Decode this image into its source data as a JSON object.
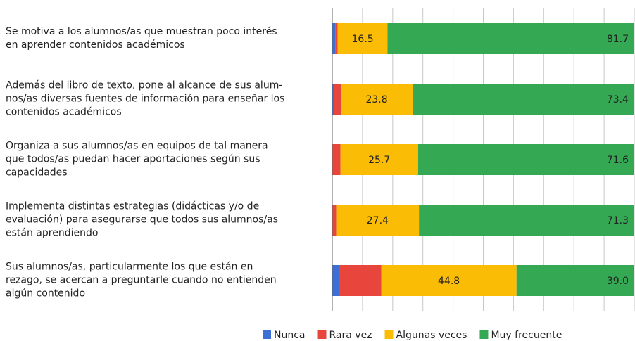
{
  "chart_data": {
    "type": "stacked_barh",
    "categories": [
      "Se motiva a los alumnos/as que muestran poco interés\nen aprender contenidos académicos",
      "Además del libro de texto, pone al alcance de sus alum-\nnos/as diversas fuentes de información para enseñar los\ncontenidos académicos",
      "Organiza a sus alumnos/as en equipos de tal manera\nque todos/as puedan hacer aportaciones según sus\ncapacidades",
      "Implementa distintas estrategias (didácticas y/o de\nevaluación) para asegurarse que todos sus alumnos/as\nestán aprendiendo",
      "Sus alumnos/as, particularmente los que están en\nrezago, se acercan a preguntarle cuando no entienden\nalgún contenido"
    ],
    "series": [
      {
        "name": "Nunca",
        "color": "#3b6fd6",
        "values": [
          1.1,
          0.6,
          0,
          0,
          2.1
        ]
      },
      {
        "name": "Rara vez",
        "color": "#e8453c",
        "values": [
          0.7,
          2.2,
          2.7,
          1.3,
          14.1
        ]
      },
      {
        "name": "Algunas veces",
        "color": "#fbbc05",
        "values": [
          16.5,
          23.8,
          25.7,
          27.4,
          44.8
        ],
        "value_labels": [
          "16.5",
          "23.8",
          "25.7",
          "27.4",
          "44.8"
        ]
      },
      {
        "name": "Muy frecuente",
        "color": "#34a853",
        "values": [
          81.7,
          73.4,
          71.6,
          71.3,
          39.0
        ],
        "value_labels": [
          "81.7",
          "73.4",
          "71.6",
          "71.3",
          "39.0"
        ]
      }
    ],
    "xlim": [
      0,
      100
    ],
    "xticks": [
      0,
      10,
      20,
      30,
      40,
      50,
      60,
      70,
      80,
      90,
      100
    ],
    "grid": true,
    "legend": "bottom"
  }
}
